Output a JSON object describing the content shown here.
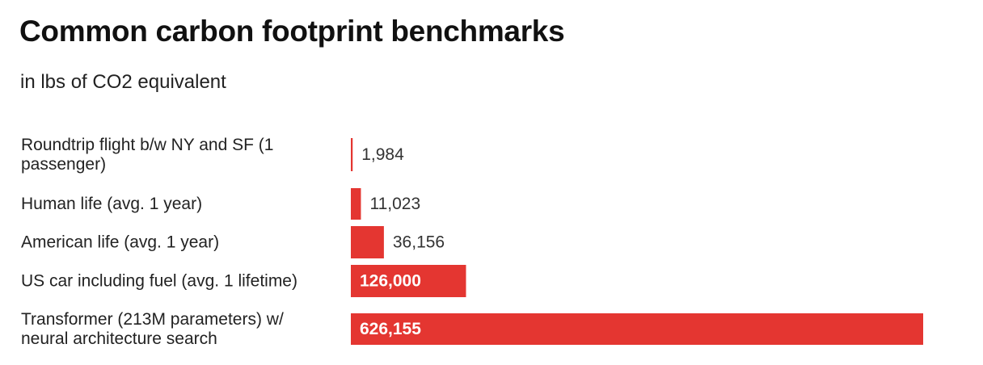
{
  "chart_data": {
    "type": "bar",
    "orientation": "horizontal",
    "title": "Common carbon footprint benchmarks",
    "subtitle": "in lbs of CO2 equivalent",
    "categories": [
      [
        "Roundtrip flight b/w NY and SF (1",
        "passenger)"
      ],
      [
        "Human life (avg. 1 year)"
      ],
      [
        "American life (avg. 1 year)"
      ],
      [
        "US car including fuel (avg. 1 lifetime)"
      ],
      [
        "Transformer (213M parameters) w/",
        "neural architecture search"
      ]
    ],
    "values": [
      1984,
      11023,
      36156,
      126000,
      626155
    ],
    "value_labels": [
      "1,984",
      "11,023",
      "36,156",
      "126,000",
      "626,155"
    ],
    "xlim": [
      0,
      626155
    ],
    "grid": false,
    "legend": "none",
    "bar_color": "#e43631",
    "label_color_outside": "#333333",
    "label_color_inside": "#ffffff"
  }
}
